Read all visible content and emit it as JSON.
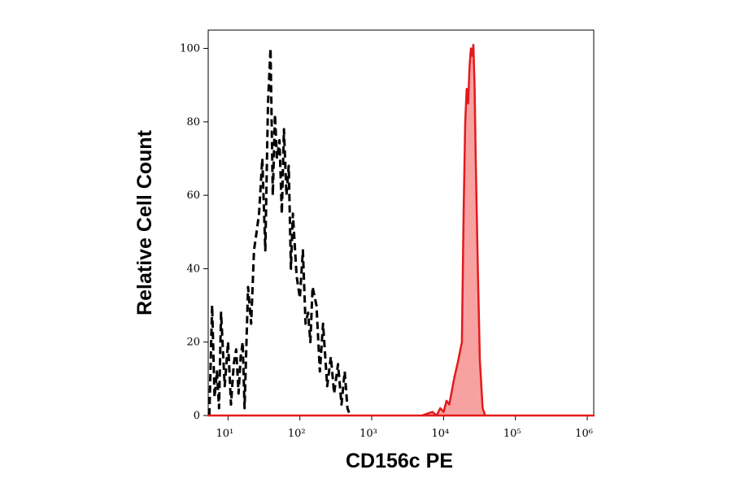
{
  "chart_data": {
    "type": "histogram-overlay",
    "x_label": "CD156c PE",
    "y_label": "Relative Cell Count",
    "xscale": "log",
    "xlim": [
      5.3,
      1230000
    ],
    "ylim": [
      0,
      105
    ],
    "xticks": [
      {
        "value": 10,
        "label": "10¹"
      },
      {
        "value": 100,
        "label": "10²"
      },
      {
        "value": 1000,
        "label": "10³"
      },
      {
        "value": 10000,
        "label": "10⁴"
      },
      {
        "value": 100000,
        "label": "10⁵"
      },
      {
        "value": 1000000,
        "label": "10⁶"
      }
    ],
    "yticks": [
      0,
      20,
      40,
      60,
      80,
      100
    ],
    "series": [
      {
        "color": "#000000",
        "dashed": true,
        "filled": false,
        "x": [
          5.5,
          6,
          6.5,
          7,
          7.5,
          8,
          9,
          10,
          11,
          12,
          13,
          14,
          15,
          16,
          17,
          19,
          21,
          23,
          25,
          27,
          30,
          33,
          36,
          39,
          42,
          45,
          48,
          52,
          56,
          60,
          65,
          70,
          75,
          80,
          90,
          100,
          110,
          120,
          130,
          140,
          150,
          170,
          190,
          210,
          240,
          270,
          300,
          340,
          380,
          420,
          460,
          500
        ],
        "values": [
          0,
          30,
          5,
          12,
          2,
          28,
          8,
          20,
          3,
          14,
          18,
          6,
          16,
          20,
          2,
          35,
          25,
          45,
          50,
          55,
          70,
          45,
          85,
          100,
          60,
          82,
          70,
          75,
          55,
          78,
          60,
          68,
          40,
          55,
          38,
          32,
          45,
          25,
          28,
          20,
          35,
          30,
          12,
          25,
          8,
          16,
          6,
          14,
          3,
          12,
          2,
          0
        ]
      },
      {
        "color": "#e31a1c",
        "dashed": false,
        "filled": true,
        "fill": "#f7a1a1",
        "x": [
          5.3,
          5000,
          7000,
          8000,
          9000,
          10000,
          11000,
          12000,
          14000,
          16000,
          18000,
          19000,
          20000,
          21000,
          22000,
          23000,
          24000,
          25000,
          26000,
          27000,
          28000,
          30000,
          32000,
          35000,
          38000,
          1230000
        ],
        "values": [
          0,
          0,
          1,
          0,
          2,
          1,
          4,
          3,
          10,
          15,
          20,
          55,
          80,
          89,
          85,
          95,
          100,
          98,
          101,
          90,
          70,
          40,
          15,
          2,
          0,
          0
        ]
      }
    ]
  }
}
